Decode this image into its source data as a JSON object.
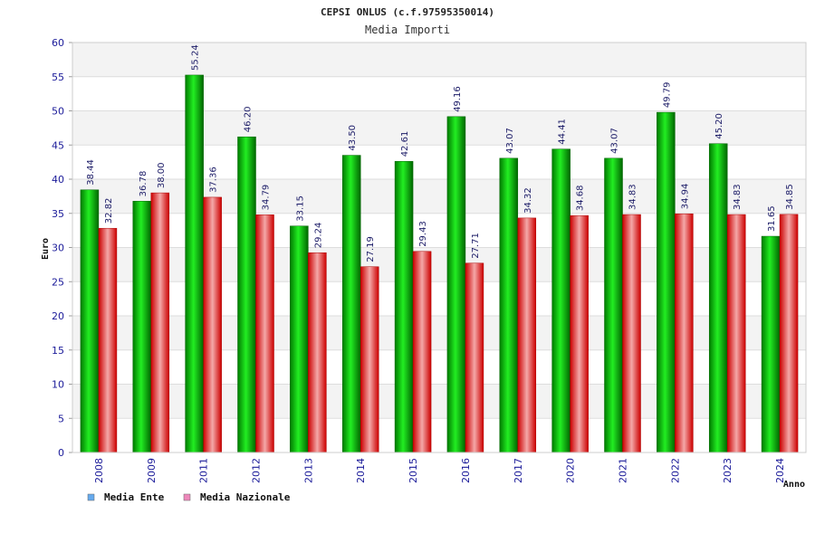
{
  "chart_data": {
    "type": "bar",
    "title": "CEPSI ONLUS (c.f.97595350014)",
    "subtitle": "Media Importi",
    "xlabel": "Anno",
    "ylabel": "Euro",
    "ylim": [
      0,
      60
    ],
    "yticks": [
      0,
      5,
      10,
      15,
      20,
      25,
      30,
      35,
      40,
      45,
      50,
      55,
      60
    ],
    "grid": true,
    "legend_placement": "bottom-left",
    "categories": [
      "2008",
      "2009",
      "2011",
      "2012",
      "2013",
      "2014",
      "2015",
      "2016",
      "2017",
      "2020",
      "2021",
      "2022",
      "2023",
      "2024"
    ],
    "series": [
      {
        "name": "Media Ente",
        "legend_color": "#66aaee",
        "bar_color": "#00cc00",
        "values": [
          38.44,
          36.78,
          55.24,
          46.2,
          33.15,
          43.5,
          42.61,
          49.16,
          43.07,
          44.41,
          43.07,
          49.79,
          45.2,
          31.65
        ],
        "labels": [
          "38.44",
          "36.78",
          "55.24",
          "46.20",
          "33.15",
          "43.50",
          "42.61",
          "49.16",
          "43.07",
          "44.41",
          "43.07",
          "49.79",
          "45.20",
          "31.65"
        ]
      },
      {
        "name": "Media Nazionale",
        "legend_color": "#ee88bb",
        "bar_color": "#ee2222",
        "values": [
          32.82,
          38.0,
          37.36,
          34.79,
          29.24,
          27.19,
          29.43,
          27.71,
          34.32,
          34.68,
          34.83,
          34.94,
          34.83,
          34.85
        ],
        "labels": [
          "32.82",
          "38.00",
          "37.36",
          "34.79",
          "29.24",
          "27.19",
          "29.43",
          "27.71",
          "34.32",
          "34.68",
          "34.83",
          "34.94",
          "34.83",
          "34.85"
        ]
      }
    ]
  }
}
